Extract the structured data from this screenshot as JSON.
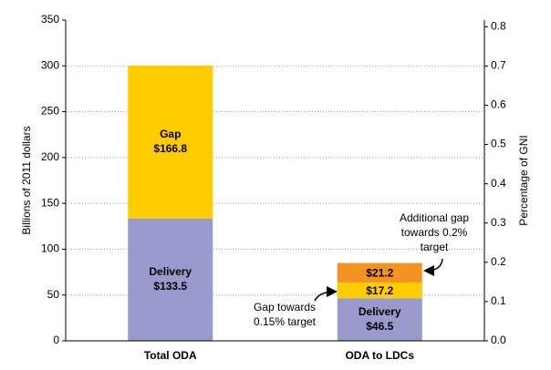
{
  "chart_data": {
    "type": "stacked-bar",
    "y_label": "Billions of 2011 dollars",
    "y2_label": "Percentage of GNI",
    "categories": [
      "Total ODA",
      "ODA to LDCs"
    ],
    "series": [
      {
        "name": "Delivery",
        "color": "#9999cc",
        "values": [
          133.5,
          46.5
        ],
        "value_labels": [
          "$133.5",
          "$46.5"
        ]
      },
      {
        "name": "Gap",
        "color": "#ffcc00",
        "values": [
          166.8,
          17.2
        ],
        "value_labels": [
          "$166.8",
          "$17.2"
        ]
      },
      {
        "color": "#f39422",
        "values": [
          null,
          21.2
        ],
        "value_labels": [
          null,
          "$21.2"
        ]
      }
    ],
    "ylim": [
      0,
      350
    ],
    "yticks": [
      0,
      50,
      100,
      150,
      200,
      250,
      300,
      350
    ],
    "y2lim": [
      0,
      0.817
    ],
    "y2ticks": [
      {
        "value": 0,
        "label": "0.0"
      },
      0.1,
      0.2,
      0.3,
      0.4,
      0.5,
      0.6,
      0.7,
      0.8
    ],
    "grid": true,
    "annotations": [
      {
        "lines": [
          "Gap towards",
          "0.15% target"
        ]
      },
      {
        "lines": [
          "Additional gap",
          "towards 0.2%",
          "target"
        ]
      }
    ]
  }
}
